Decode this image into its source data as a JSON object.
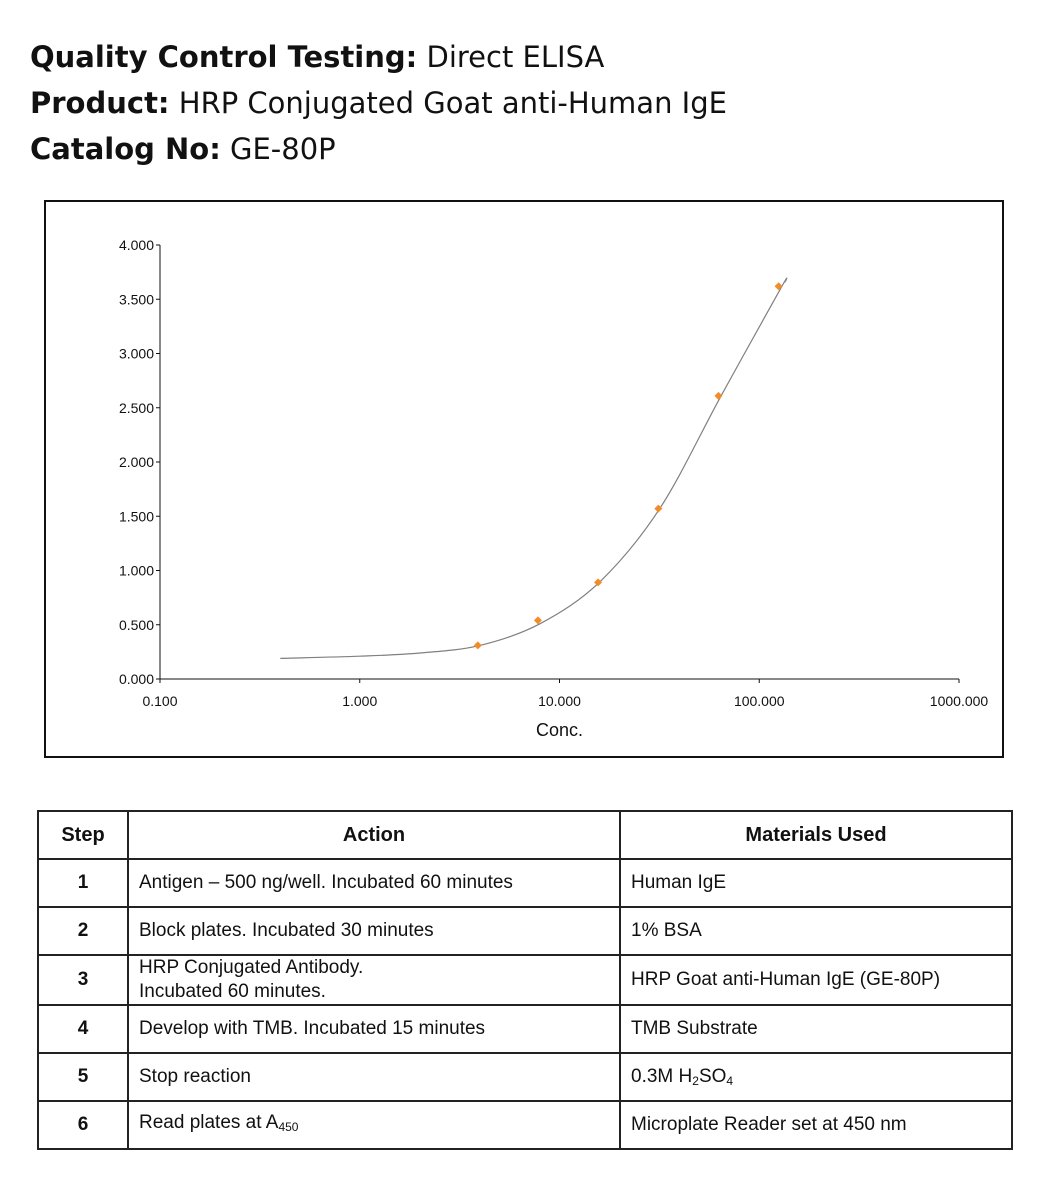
{
  "header": {
    "lines": [
      {
        "label": "Quality Control Testing:",
        "value": "Direct ELISA"
      },
      {
        "label": "Product:",
        "value": "HRP Conjugated Goat anti-Human IgE"
      },
      {
        "label": "Catalog No:",
        "value": " GE-80P"
      }
    ]
  },
  "chart_data": {
    "type": "scatter",
    "xscale": "log",
    "xlabel": "Conc.",
    "ylabel": "",
    "xlim": [
      0.1,
      1000
    ],
    "ylim": [
      0,
      4
    ],
    "x_ticks": [
      "0.100",
      "1.000",
      "10.000",
      "100.000",
      "1000.000"
    ],
    "y_ticks": [
      "0.000",
      "0.500",
      "1.000",
      "1.500",
      "2.000",
      "2.500",
      "3.000",
      "3.500",
      "4.000"
    ],
    "points": {
      "color": "#f28c28",
      "x": [
        3.9,
        7.8,
        15.6,
        31.25,
        62.5,
        125
      ],
      "y": [
        0.31,
        0.54,
        0.89,
        1.57,
        2.61,
        3.62
      ]
    },
    "fit_curve": {
      "color": "#808080",
      "x": [
        0.4,
        1,
        2,
        4,
        8,
        16,
        32,
        64,
        128,
        135
      ],
      "y": [
        0.19,
        0.21,
        0.24,
        0.31,
        0.51,
        0.9,
        1.58,
        2.6,
        3.6,
        3.66
      ]
    },
    "grid": false,
    "legend": "none"
  },
  "table": {
    "headers": [
      "Step",
      "Action",
      "Materials Used"
    ],
    "rows": [
      {
        "step": "1",
        "action": "Antigen – 500 ng/well. Incubated 60 minutes",
        "action2": "",
        "material": "Human IgE",
        "material_sub1": "",
        "material_mid": "",
        "material_sub2": ""
      },
      {
        "step": "2",
        "action": "Block plates. Incubated 30 minutes",
        "action2": "",
        "material": "1% BSA",
        "material_sub1": "",
        "material_mid": "",
        "material_sub2": ""
      },
      {
        "step": "3",
        "action": "HRP Conjugated Antibody.",
        "action2": "Incubated 60 minutes.",
        "material": "HRP Goat anti-Human IgE (GE-80P)",
        "material_sub1": "",
        "material_mid": "",
        "material_sub2": ""
      },
      {
        "step": "4",
        "action": "Develop with TMB. Incubated 15 minutes",
        "action2": "",
        "material": "TMB Substrate",
        "material_sub1": "",
        "material_mid": "",
        "material_sub2": ""
      },
      {
        "step": "5",
        "action": "Stop reaction",
        "action2": "",
        "material": "0.3M H",
        "material_sub1": "2",
        "material_mid": "SO",
        "material_sub2": "4"
      },
      {
        "step": "6",
        "action": "Read plates at A",
        "action_sub": "450",
        "action2": "",
        "material": "Microplate Reader set at 450 nm",
        "material_sub1": "",
        "material_mid": "",
        "material_sub2": ""
      }
    ]
  }
}
